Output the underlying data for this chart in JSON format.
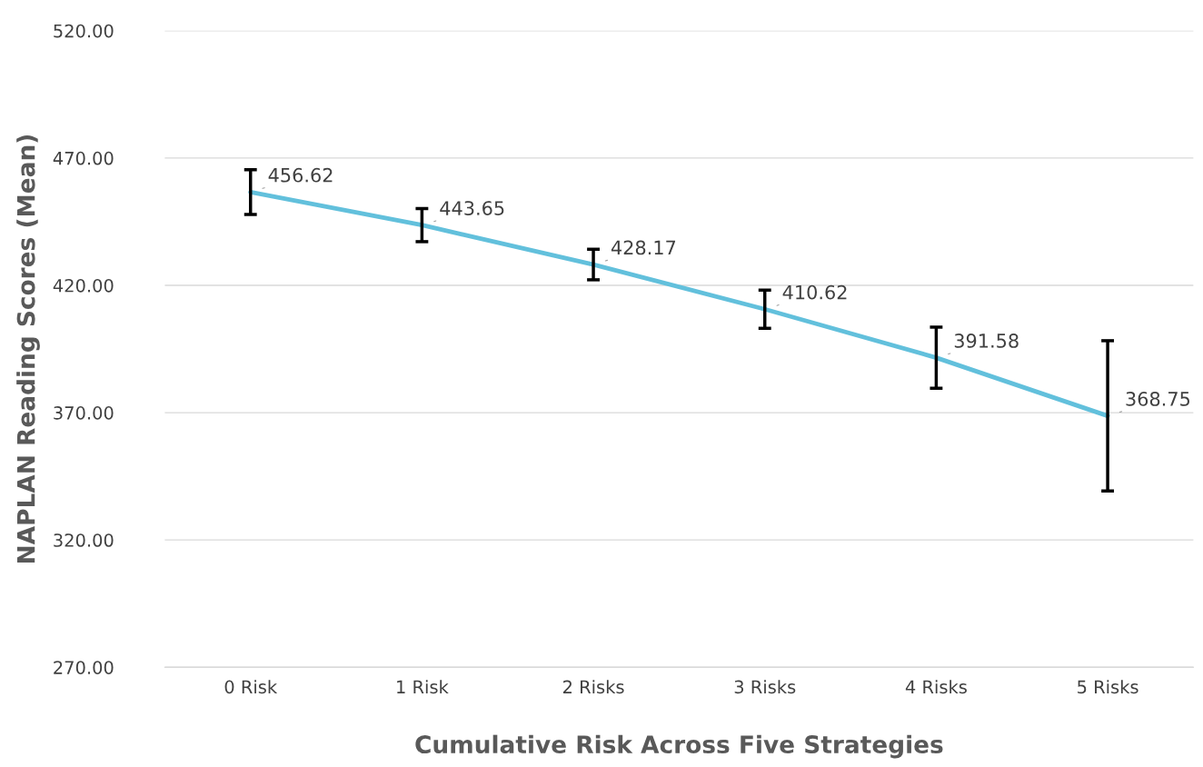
{
  "chart_data": {
    "type": "line",
    "xlabel": "Cumulative Risk Across Five Strategies",
    "ylabel": "NAPLAN Reading Scores (Mean)",
    "categories": [
      "0 Risk",
      "1 Risk",
      "2 Risks",
      "3 Risks",
      "4 Risks",
      "5 Risks"
    ],
    "values": [
      456.62,
      443.65,
      428.17,
      410.62,
      391.58,
      368.75
    ],
    "errors": [
      8.8,
      6.5,
      6,
      7.5,
      12,
      29.5
    ],
    "color": "#62c0dc",
    "ylim": [
      270,
      520
    ],
    "yticks": [
      {
        "value": 270,
        "label": "270.00"
      },
      {
        "value": 320,
        "label": "320.00"
      },
      {
        "value": 370,
        "label": "370.00"
      },
      {
        "value": 420,
        "label": "420.00"
      },
      {
        "value": 470,
        "label": "470.00"
      },
      {
        "value": 520,
        "label": "520.00"
      }
    ],
    "grid": "y",
    "line_style": "solid",
    "data_labels": true
  }
}
